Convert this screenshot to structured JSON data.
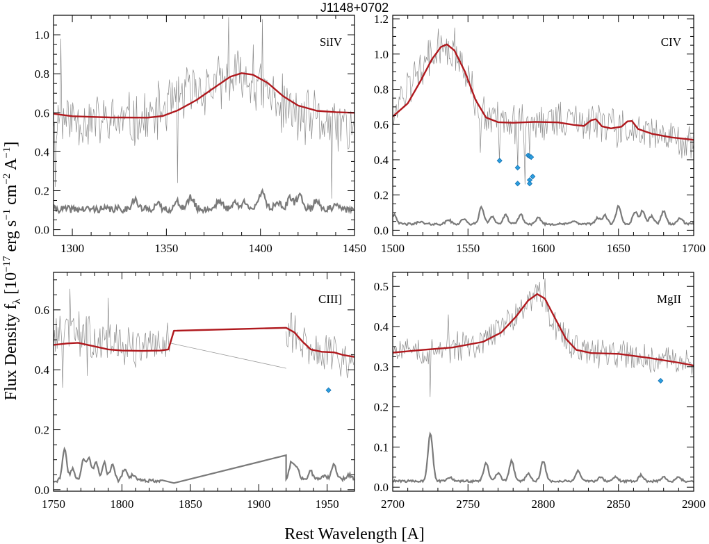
{
  "figure": {
    "title": "J1148+0702",
    "xlabel": "Rest Wavelength [A]",
    "ylabel_parts": {
      "base": "Flux Density f",
      "sub": "λ",
      "units": " [10",
      "exp1": "−17",
      "erg": " erg s",
      "exp2": "−1",
      "cm": " cm",
      "exp3": "−2",
      "ang": " A",
      "exp4": "−1",
      "close": "]"
    },
    "colors": {
      "model": "#b0191e",
      "data": "#8c8c8c",
      "error": "#7a7a7a",
      "marker": "#2b9fe0"
    }
  },
  "chart_data": [
    {
      "type": "line",
      "name": "SiIV",
      "xlim": [
        1290,
        1450
      ],
      "ylim": [
        -0.03,
        1.1
      ],
      "xticks": [
        1300,
        1350,
        1400,
        1450
      ],
      "yticks": [
        0.0,
        0.2,
        0.4,
        0.6,
        0.8,
        1.0
      ],
      "ytick_labels": [
        "0.0",
        "0.2",
        "0.4",
        "0.6",
        "0.8",
        "1.0"
      ],
      "model": [
        [
          1290,
          0.595
        ],
        [
          1300,
          0.582
        ],
        [
          1320,
          0.576
        ],
        [
          1340,
          0.575
        ],
        [
          1348,
          0.583
        ],
        [
          1356,
          0.612
        ],
        [
          1366,
          0.665
        ],
        [
          1376,
          0.732
        ],
        [
          1384,
          0.785
        ],
        [
          1390,
          0.803
        ],
        [
          1396,
          0.795
        ],
        [
          1404,
          0.752
        ],
        [
          1412,
          0.685
        ],
        [
          1420,
          0.637
        ],
        [
          1430,
          0.61
        ],
        [
          1440,
          0.603
        ],
        [
          1450,
          0.6
        ]
      ],
      "flux_base": [
        [
          1290,
          0.58
        ],
        [
          1320,
          0.55
        ],
        [
          1340,
          0.56
        ],
        [
          1360,
          0.7
        ],
        [
          1380,
          0.75
        ],
        [
          1390,
          0.78
        ],
        [
          1400,
          0.72
        ],
        [
          1420,
          0.58
        ],
        [
          1450,
          0.52
        ]
      ],
      "flux_noise": 0.17,
      "flux_spikes": [
        [
          1291,
          0.22
        ],
        [
          1294,
          0.98
        ],
        [
          1356,
          0.24
        ],
        [
          1383,
          1.09
        ],
        [
          1396,
          0.95
        ],
        [
          1401,
          1.08
        ],
        [
          1438,
          0.16
        ],
        [
          1447,
          0.42
        ]
      ],
      "error_level": 0.105,
      "error_peaks": [
        [
          1333,
          0.155
        ],
        [
          1345,
          0.13
        ],
        [
          1356,
          0.14
        ],
        [
          1363,
          0.165
        ],
        [
          1378,
          0.15
        ],
        [
          1386,
          0.14
        ],
        [
          1392,
          0.145
        ],
        [
          1401,
          0.2
        ],
        [
          1409,
          0.145
        ],
        [
          1416,
          0.16
        ],
        [
          1421,
          0.175
        ],
        [
          1430,
          0.15
        ],
        [
          1440,
          0.12
        ]
      ],
      "markers": []
    },
    {
      "type": "line",
      "name": "CIV",
      "xlim": [
        1500,
        1700
      ],
      "ylim": [
        -0.03,
        1.22
      ],
      "xticks": [
        1500,
        1550,
        1600,
        1650,
        1700
      ],
      "yticks": [
        0.0,
        0.2,
        0.4,
        0.6,
        0.8,
        1.0,
        1.2
      ],
      "ytick_labels": [
        "0.0",
        "0.2",
        "0.4",
        "0.6",
        "0.8",
        "1.0",
        "1.2"
      ],
      "model": [
        [
          1500,
          0.645
        ],
        [
          1510,
          0.72
        ],
        [
          1518,
          0.84
        ],
        [
          1526,
          0.97
        ],
        [
          1532,
          1.04
        ],
        [
          1536,
          1.055
        ],
        [
          1541,
          1.02
        ],
        [
          1548,
          0.9
        ],
        [
          1555,
          0.74
        ],
        [
          1562,
          0.64
        ],
        [
          1570,
          0.613
        ],
        [
          1580,
          0.61
        ],
        [
          1595,
          0.615
        ],
        [
          1610,
          0.612
        ],
        [
          1620,
          0.598
        ],
        [
          1627,
          0.592
        ],
        [
          1632,
          0.625
        ],
        [
          1635,
          0.63
        ],
        [
          1639,
          0.59
        ],
        [
          1645,
          0.578
        ],
        [
          1652,
          0.588
        ],
        [
          1656,
          0.618
        ],
        [
          1659,
          0.62
        ],
        [
          1663,
          0.575
        ],
        [
          1672,
          0.548
        ],
        [
          1685,
          0.527
        ],
        [
          1700,
          0.513
        ]
      ],
      "flux_base": [
        [
          1500,
          0.66
        ],
        [
          1515,
          0.88
        ],
        [
          1530,
          1.02
        ],
        [
          1540,
          1.02
        ],
        [
          1550,
          0.85
        ],
        [
          1560,
          0.65
        ],
        [
          1580,
          0.6
        ],
        [
          1620,
          0.62
        ],
        [
          1660,
          0.58
        ],
        [
          1700,
          0.5
        ]
      ],
      "flux_noise": 0.13,
      "flux_spikes": [
        [
          1541,
          1.15
        ],
        [
          1558,
          0.44
        ],
        [
          1571,
          0.39
        ],
        [
          1583,
          0.34
        ],
        [
          1588,
          0.26
        ],
        [
          1591,
          0.42
        ]
      ],
      "error_level": 0.035,
      "error_peaks": [
        [
          1501,
          0.09
        ],
        [
          1518,
          0.05
        ],
        [
          1537,
          0.06
        ],
        [
          1547,
          0.065
        ],
        [
          1559,
          0.13
        ],
        [
          1566,
          0.08
        ],
        [
          1575,
          0.085
        ],
        [
          1585,
          0.09
        ],
        [
          1597,
          0.07
        ],
        [
          1620,
          0.055
        ],
        [
          1636,
          0.07
        ],
        [
          1641,
          0.085
        ],
        [
          1650,
          0.135
        ],
        [
          1661,
          0.105
        ],
        [
          1666,
          0.11
        ],
        [
          1672,
          0.08
        ],
        [
          1680,
          0.11
        ],
        [
          1691,
          0.07
        ]
      ],
      "markers": [
        [
          1571,
          0.395
        ],
        [
          1583,
          0.355
        ],
        [
          1583,
          0.265
        ],
        [
          1590,
          0.425
        ],
        [
          1591,
          0.42
        ],
        [
          1592,
          0.415
        ],
        [
          1591,
          0.285
        ],
        [
          1591,
          0.265
        ],
        [
          1593,
          0.305
        ]
      ]
    },
    {
      "type": "line",
      "name": "CIII]",
      "xlim": [
        1750,
        1970
      ],
      "ylim": [
        -0.005,
        0.725
      ],
      "xticks": [
        1750,
        1800,
        1850,
        1900,
        1950
      ],
      "yticks": [
        0.0,
        0.2,
        0.4,
        0.6
      ],
      "ytick_labels": [
        "0.0",
        "0.2",
        "0.4",
        "0.6"
      ],
      "model": [
        [
          1750,
          0.483
        ],
        [
          1760,
          0.488
        ],
        [
          1768,
          0.49
        ],
        [
          1780,
          0.478
        ],
        [
          1790,
          0.468
        ],
        [
          1800,
          0.464
        ],
        [
          1815,
          0.463
        ],
        [
          1828,
          0.464
        ],
        [
          1834,
          0.468
        ],
        [
          1838,
          0.53
        ],
        [
          1920,
          0.54
        ],
        [
          1926,
          0.525
        ],
        [
          1932,
          0.494
        ],
        [
          1938,
          0.468
        ],
        [
          1946,
          0.46
        ],
        [
          1955,
          0.458
        ],
        [
          1962,
          0.449
        ],
        [
          1970,
          0.443
        ]
      ],
      "flux_base": [
        [
          1750,
          0.51
        ],
        [
          1765,
          0.53
        ],
        [
          1780,
          0.5
        ],
        [
          1800,
          0.48
        ],
        [
          1820,
          0.47
        ],
        [
          1836,
          0.49
        ]
      ],
      "flux_noise": 0.085,
      "flux_base_2": [
        [
          1920,
          0.55
        ],
        [
          1930,
          0.49
        ],
        [
          1945,
          0.46
        ],
        [
          1970,
          0.44
        ]
      ],
      "flux_noise_2": 0.08,
      "flux_spikes": [
        [
          1757,
          0.34
        ],
        [
          1762,
          0.67
        ],
        [
          1775,
          0.38
        ],
        [
          1790,
          0.64
        ],
        [
          1924,
          0.59
        ]
      ],
      "flux_gap_line": [
        [
          1836,
          0.49
        ],
        [
          1920,
          0.405
        ]
      ],
      "error_level": 0.03,
      "error_peaks": [
        [
          1758,
          0.135
        ],
        [
          1764,
          0.07
        ],
        [
          1772,
          0.1
        ],
        [
          1776,
          0.1
        ],
        [
          1781,
          0.095
        ],
        [
          1787,
          0.09
        ],
        [
          1793,
          0.085
        ],
        [
          1802,
          0.07
        ],
        [
          1808,
          0.05
        ],
        [
          1815,
          0.035
        ],
        [
          1823,
          0.03
        ]
      ],
      "error_gap_line": [
        [
          1838,
          0.022
        ],
        [
          1920,
          0.115
        ]
      ],
      "error_level_2": 0.035,
      "error_peaks_2": [
        [
          1924,
          0.095
        ],
        [
          1928,
          0.075
        ],
        [
          1938,
          0.06
        ],
        [
          1948,
          0.05
        ],
        [
          1955,
          0.085
        ],
        [
          1966,
          0.05
        ]
      ],
      "markers": [
        [
          1951,
          0.332
        ]
      ]
    },
    {
      "type": "line",
      "name": "MgII",
      "xlim": [
        2700,
        2900
      ],
      "ylim": [
        -0.01,
        0.535
      ],
      "xticks": [
        2700,
        2750,
        2800,
        2850,
        2900
      ],
      "yticks": [
        0.0,
        0.1,
        0.2,
        0.3,
        0.4,
        0.5
      ],
      "ytick_labels": [
        "0.0",
        "0.1",
        "0.2",
        "0.3",
        "0.4",
        "0.5"
      ],
      "model": [
        [
          2700,
          0.335
        ],
        [
          2720,
          0.342
        ],
        [
          2740,
          0.348
        ],
        [
          2760,
          0.362
        ],
        [
          2772,
          0.385
        ],
        [
          2782,
          0.425
        ],
        [
          2790,
          0.465
        ],
        [
          2796,
          0.481
        ],
        [
          2801,
          0.47
        ],
        [
          2808,
          0.42
        ],
        [
          2815,
          0.37
        ],
        [
          2822,
          0.342
        ],
        [
          2832,
          0.334
        ],
        [
          2850,
          0.332
        ],
        [
          2870,
          0.322
        ],
        [
          2890,
          0.31
        ],
        [
          2900,
          0.303
        ]
      ],
      "flux_base": [
        [
          2700,
          0.34
        ],
        [
          2730,
          0.34
        ],
        [
          2760,
          0.36
        ],
        [
          2780,
          0.42
        ],
        [
          2797,
          0.48
        ],
        [
          2808,
          0.41
        ],
        [
          2820,
          0.34
        ],
        [
          2860,
          0.33
        ],
        [
          2900,
          0.3
        ]
      ],
      "flux_noise": 0.045,
      "flux_spikes": [
        [
          2725,
          0.225
        ],
        [
          2737,
          0.43
        ],
        [
          2801,
          0.52
        ]
      ],
      "error_level": 0.015,
      "error_peaks": [
        [
          2725,
          0.135
        ],
        [
          2738,
          0.025
        ],
        [
          2762,
          0.06
        ],
        [
          2770,
          0.035
        ],
        [
          2779,
          0.065
        ],
        [
          2790,
          0.035
        ],
        [
          2800,
          0.065
        ],
        [
          2823,
          0.04
        ],
        [
          2838,
          0.025
        ],
        [
          2848,
          0.025
        ],
        [
          2865,
          0.03
        ],
        [
          2880,
          0.025
        ],
        [
          2890,
          0.025
        ]
      ],
      "markers": [
        [
          2878,
          0.265
        ]
      ]
    }
  ]
}
